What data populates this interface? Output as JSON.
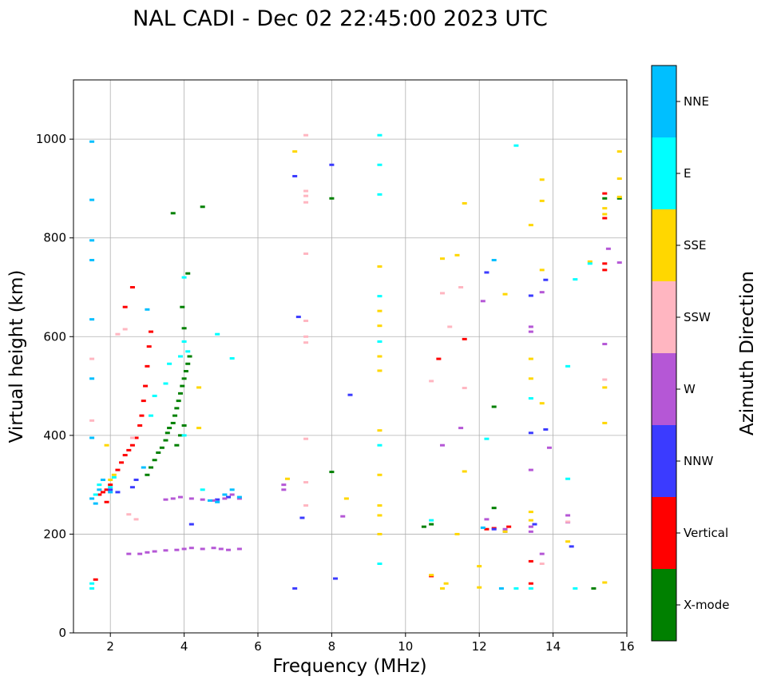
{
  "chart_data": {
    "type": "scatter",
    "title": "NAL CADI - Dec 02 22:45:00 2023 UTC",
    "xlabel": "Frequency (MHz)",
    "ylabel": "Virtual height (km)",
    "xlim": [
      1,
      16
    ],
    "ylim": [
      0,
      1120
    ],
    "xticks": [
      2,
      4,
      6,
      8,
      10,
      12,
      14,
      16
    ],
    "yticks": [
      0,
      200,
      400,
      600,
      800,
      1000
    ],
    "grid": true,
    "colorbar": {
      "label": "Azimuth Direction",
      "categories": [
        {
          "name": "X-mode",
          "color": "#008000"
        },
        {
          "name": "Vertical",
          "color": "#ff0000"
        },
        {
          "name": "NNW",
          "color": "#3b3bff"
        },
        {
          "name": "W",
          "color": "#b557d6"
        },
        {
          "name": "SSW",
          "color": "#ffb6c1"
        },
        {
          "name": "SSE",
          "color": "#ffd700"
        },
        {
          "name": "E",
          "color": "#00ffff"
        },
        {
          "name": "NNE",
          "color": "#00bfff"
        }
      ]
    },
    "series": [
      {
        "name": "X-mode",
        "points": [
          [
            3.0,
            320
          ],
          [
            3.1,
            335
          ],
          [
            3.2,
            350
          ],
          [
            3.3,
            365
          ],
          [
            3.4,
            375
          ],
          [
            3.5,
            390
          ],
          [
            3.55,
            405
          ],
          [
            3.6,
            415
          ],
          [
            3.7,
            425
          ],
          [
            3.75,
            440
          ],
          [
            3.8,
            455
          ],
          [
            3.85,
            470
          ],
          [
            3.9,
            485
          ],
          [
            3.95,
            500
          ],
          [
            4.0,
            515
          ],
          [
            4.05,
            530
          ],
          [
            4.1,
            545
          ],
          [
            4.15,
            560
          ],
          [
            3.8,
            380
          ],
          [
            3.9,
            400
          ],
          [
            4.0,
            420
          ],
          [
            4.0,
            617
          ],
          [
            4.1,
            728
          ],
          [
            3.95,
            660
          ],
          [
            3.7,
            850
          ],
          [
            4.5,
            863
          ],
          [
            8.0,
            880
          ],
          [
            8.0,
            326
          ],
          [
            10.5,
            215
          ],
          [
            10.7,
            220
          ],
          [
            12.4,
            458
          ],
          [
            12.4,
            253
          ],
          [
            15.1,
            90
          ],
          [
            15.4,
            880
          ],
          [
            15.8,
            880
          ]
        ]
      },
      {
        "name": "Vertical",
        "points": [
          [
            1.6,
            108
          ],
          [
            1.7,
            280
          ],
          [
            1.8,
            285
          ],
          [
            1.9,
            290
          ],
          [
            2.0,
            300
          ],
          [
            2.2,
            330
          ],
          [
            2.3,
            345
          ],
          [
            2.4,
            360
          ],
          [
            2.5,
            370
          ],
          [
            2.6,
            380
          ],
          [
            2.7,
            395
          ],
          [
            2.8,
            420
          ],
          [
            2.85,
            440
          ],
          [
            2.9,
            470
          ],
          [
            2.95,
            500
          ],
          [
            3.0,
            540
          ],
          [
            3.05,
            580
          ],
          [
            3.1,
            610
          ],
          [
            2.4,
            660
          ],
          [
            2.6,
            700
          ],
          [
            1.9,
            265
          ],
          [
            10.7,
            115
          ],
          [
            10.9,
            555
          ],
          [
            11.6,
            595
          ],
          [
            12.2,
            210
          ],
          [
            12.4,
            212
          ],
          [
            12.8,
            215
          ],
          [
            13.4,
            145
          ],
          [
            13.4,
            100
          ],
          [
            15.4,
            890
          ],
          [
            15.4,
            840
          ],
          [
            15.4,
            748
          ],
          [
            15.4,
            735
          ]
        ]
      },
      {
        "name": "NNW",
        "points": [
          [
            7.0,
            925
          ],
          [
            7.0,
            90
          ],
          [
            7.1,
            640
          ],
          [
            7.2,
            233
          ],
          [
            8.0,
            948
          ],
          [
            8.1,
            110
          ],
          [
            8.5,
            482
          ],
          [
            12.2,
            730
          ],
          [
            12.4,
            210
          ],
          [
            12.7,
            205
          ],
          [
            13.4,
            683
          ],
          [
            13.4,
            405
          ],
          [
            13.5,
            220
          ],
          [
            13.8,
            715
          ],
          [
            13.8,
            412
          ],
          [
            14.5,
            175
          ],
          [
            4.2,
            220
          ],
          [
            2.6,
            295
          ],
          [
            2.7,
            310
          ],
          [
            2.2,
            285
          ],
          [
            2.0,
            290
          ],
          [
            4.9,
            270
          ],
          [
            5.2,
            275
          ]
        ]
      },
      {
        "name": "W",
        "points": [
          [
            2.5,
            160
          ],
          [
            2.8,
            160
          ],
          [
            3.0,
            163
          ],
          [
            3.2,
            165
          ],
          [
            3.5,
            167
          ],
          [
            3.8,
            168
          ],
          [
            4.0,
            170
          ],
          [
            4.2,
            172
          ],
          [
            4.5,
            170
          ],
          [
            4.8,
            172
          ],
          [
            5.0,
            170
          ],
          [
            5.2,
            168
          ],
          [
            5.5,
            170
          ],
          [
            3.5,
            270
          ],
          [
            3.7,
            272
          ],
          [
            3.9,
            275
          ],
          [
            4.2,
            272
          ],
          [
            4.5,
            270
          ],
          [
            4.8,
            268
          ],
          [
            5.1,
            272
          ],
          [
            5.3,
            280
          ],
          [
            5.5,
            272
          ],
          [
            6.7,
            300
          ],
          [
            6.7,
            290
          ],
          [
            8.3,
            236
          ],
          [
            11.0,
            380
          ],
          [
            11.5,
            415
          ],
          [
            12.1,
            672
          ],
          [
            12.2,
            230
          ],
          [
            12.7,
            210
          ],
          [
            13.4,
            620
          ],
          [
            13.4,
            610
          ],
          [
            13.4,
            330
          ],
          [
            13.4,
            215
          ],
          [
            13.4,
            205
          ],
          [
            13.7,
            690
          ],
          [
            13.7,
            160
          ],
          [
            14.4,
            238
          ],
          [
            14.4,
            224
          ],
          [
            13.9,
            375
          ],
          [
            15.4,
            585
          ],
          [
            15.5,
            778
          ],
          [
            15.8,
            750
          ]
        ]
      },
      {
        "name": "SSW",
        "points": [
          [
            1.5,
            555
          ],
          [
            1.5,
            430
          ],
          [
            2.2,
            605
          ],
          [
            2.4,
            615
          ],
          [
            2.6,
            395
          ],
          [
            2.5,
            240
          ],
          [
            2.7,
            230
          ],
          [
            7.3,
            1008
          ],
          [
            7.3,
            895
          ],
          [
            7.3,
            885
          ],
          [
            7.3,
            872
          ],
          [
            7.3,
            768
          ],
          [
            7.3,
            632
          ],
          [
            7.3,
            600
          ],
          [
            7.3,
            588
          ],
          [
            7.3,
            393
          ],
          [
            7.3,
            305
          ],
          [
            7.3,
            258
          ],
          [
            10.7,
            510
          ],
          [
            11.0,
            688
          ],
          [
            11.2,
            620
          ],
          [
            11.5,
            700
          ],
          [
            11.6,
            496
          ],
          [
            15.4,
            513
          ],
          [
            13.7,
            140
          ],
          [
            14.4,
            225
          ]
        ]
      },
      {
        "name": "SSE",
        "points": [
          [
            1.9,
            380
          ],
          [
            2.0,
            310
          ],
          [
            2.1,
            320
          ],
          [
            4.4,
            497
          ],
          [
            4.4,
            415
          ],
          [
            7.0,
            975
          ],
          [
            6.8,
            312
          ],
          [
            8.4,
            272
          ],
          [
            9.3,
            742
          ],
          [
            9.3,
            652
          ],
          [
            9.3,
            622
          ],
          [
            9.3,
            560
          ],
          [
            9.3,
            531
          ],
          [
            9.3,
            410
          ],
          [
            9.3,
            320
          ],
          [
            9.3,
            258
          ],
          [
            9.3,
            238
          ],
          [
            9.3,
            200
          ],
          [
            10.7,
            117
          ],
          [
            11.0,
            90
          ],
          [
            11.1,
            100
          ],
          [
            11.0,
            758
          ],
          [
            11.4,
            765
          ],
          [
            11.4,
            200
          ],
          [
            11.6,
            870
          ],
          [
            11.6,
            327
          ],
          [
            12.0,
            135
          ],
          [
            12.0,
            92
          ],
          [
            12.7,
            686
          ],
          [
            12.7,
            205
          ],
          [
            13.4,
            826
          ],
          [
            13.4,
            555
          ],
          [
            13.4,
            515
          ],
          [
            13.4,
            245
          ],
          [
            13.4,
            228
          ],
          [
            13.7,
            918
          ],
          [
            13.7,
            875
          ],
          [
            13.7,
            735
          ],
          [
            13.7,
            465
          ],
          [
            14.4,
            185
          ],
          [
            15.0,
            752
          ],
          [
            15.4,
            860
          ],
          [
            15.4,
            848
          ],
          [
            15.4,
            497
          ],
          [
            15.4,
            425
          ],
          [
            15.4,
            102
          ],
          [
            15.8,
            975
          ],
          [
            15.8,
            920
          ],
          [
            15.8,
            883
          ]
        ]
      },
      {
        "name": "E",
        "points": [
          [
            1.5,
            100
          ],
          [
            1.5,
            90
          ],
          [
            1.6,
            280
          ],
          [
            1.7,
            300
          ],
          [
            2.0,
            295
          ],
          [
            2.1,
            315
          ],
          [
            3.1,
            440
          ],
          [
            3.2,
            480
          ],
          [
            3.5,
            505
          ],
          [
            3.6,
            545
          ],
          [
            3.9,
            560
          ],
          [
            4.1,
            570
          ],
          [
            4.0,
            720
          ],
          [
            4.0,
            590
          ],
          [
            4.0,
            400
          ],
          [
            4.9,
            605
          ],
          [
            5.3,
            556
          ],
          [
            4.5,
            290
          ],
          [
            9.3,
            1008
          ],
          [
            9.3,
            948
          ],
          [
            9.3,
            888
          ],
          [
            9.3,
            682
          ],
          [
            9.3,
            590
          ],
          [
            9.3,
            380
          ],
          [
            9.3,
            140
          ],
          [
            10.7,
            228
          ],
          [
            12.2,
            393
          ],
          [
            13.0,
            987
          ],
          [
            13.4,
            475
          ],
          [
            13.4,
            90
          ],
          [
            13.0,
            90
          ],
          [
            14.4,
            540
          ],
          [
            14.4,
            312
          ],
          [
            14.6,
            90
          ],
          [
            14.6,
            716
          ],
          [
            15.0,
            748
          ]
        ]
      },
      {
        "name": "NNE",
        "points": [
          [
            1.5,
            995
          ],
          [
            1.5,
            877
          ],
          [
            1.5,
            795
          ],
          [
            1.5,
            755
          ],
          [
            1.5,
            635
          ],
          [
            1.5,
            515
          ],
          [
            1.5,
            395
          ],
          [
            1.5,
            272
          ],
          [
            1.6,
            262
          ],
          [
            1.7,
            290
          ],
          [
            1.8,
            310
          ],
          [
            2.0,
            285
          ],
          [
            3.0,
            655
          ],
          [
            2.9,
            335
          ],
          [
            4.7,
            268
          ],
          [
            4.9,
            265
          ],
          [
            5.1,
            280
          ],
          [
            5.3,
            290
          ],
          [
            5.5,
            275
          ],
          [
            12.4,
            755
          ],
          [
            12.6,
            90
          ],
          [
            12.1,
            213
          ]
        ]
      }
    ]
  }
}
